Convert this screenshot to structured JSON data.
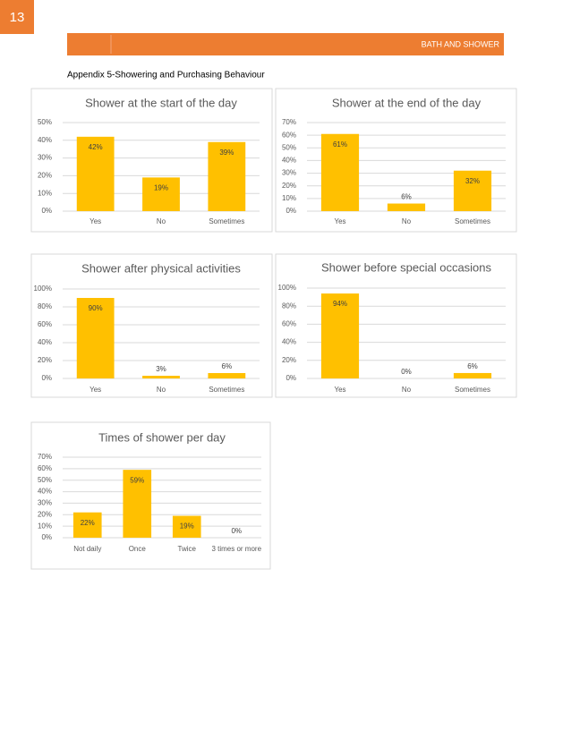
{
  "page_number": "13",
  "header": {
    "title": "BATH AND SHOWER"
  },
  "heading": "Appendix 5-Showering and Purchasing Behaviour",
  "chart_data": [
    {
      "type": "bar",
      "title": "Shower at the start of the day",
      "categories": [
        "Yes",
        "No",
        "Sometimes"
      ],
      "values": [
        42,
        19,
        39
      ],
      "value_labels": [
        "42%",
        "19%",
        "39%"
      ],
      "color": "#FFC000",
      "ylim": [
        0,
        50
      ],
      "yticks": [
        {
          "value": 0,
          "label": "0%"
        },
        {
          "value": 10,
          "label": "10%"
        },
        {
          "value": 20,
          "label": "20%"
        },
        {
          "value": 30,
          "label": "30%"
        },
        {
          "value": 40,
          "label": "40%"
        },
        {
          "value": 50,
          "label": "50%"
        }
      ],
      "grid": true
    },
    {
      "type": "bar",
      "title": "Shower at the end of the day",
      "categories": [
        "Yes",
        "No",
        "Sometimes"
      ],
      "values": [
        61,
        6,
        32
      ],
      "value_labels": [
        "61%",
        "6%",
        "32%"
      ],
      "color": "#FFC000",
      "ylim": [
        0,
        70
      ],
      "yticks": [
        {
          "value": 0,
          "label": "0%"
        },
        {
          "value": 10,
          "label": "10%"
        },
        {
          "value": 20,
          "label": "20%"
        },
        {
          "value": 30,
          "label": "30%"
        },
        {
          "value": 40,
          "label": "40%"
        },
        {
          "value": 50,
          "label": "50%"
        },
        {
          "value": 60,
          "label": "60%"
        },
        {
          "value": 70,
          "label": "70%"
        }
      ],
      "grid": true
    },
    {
      "type": "bar",
      "title": "Shower after physical activities",
      "categories": [
        "Yes",
        "No",
        "Sometimes"
      ],
      "values": [
        90,
        3,
        6
      ],
      "value_labels": [
        "90%",
        "3%",
        "6%"
      ],
      "color": "#FFC000",
      "ylim": [
        0,
        100
      ],
      "yticks": [
        {
          "value": 0,
          "label": "0%"
        },
        {
          "value": 20,
          "label": "20%"
        },
        {
          "value": 40,
          "label": "40%"
        },
        {
          "value": 60,
          "label": "60%"
        },
        {
          "value": 80,
          "label": "80%"
        },
        {
          "value": 100,
          "label": "100%"
        }
      ],
      "grid": true
    },
    {
      "type": "bar",
      "title": "Shower before special occasions",
      "categories": [
        "Yes",
        "No",
        "Sometimes"
      ],
      "values": [
        94,
        0,
        6
      ],
      "value_labels": [
        "94%",
        "0%",
        "6%"
      ],
      "color": "#FFC000",
      "ylim": [
        0,
        100
      ],
      "yticks": [
        {
          "value": 0,
          "label": "0%"
        },
        {
          "value": 20,
          "label": "20%"
        },
        {
          "value": 40,
          "label": "40%"
        },
        {
          "value": 60,
          "label": "60%"
        },
        {
          "value": 80,
          "label": "80%"
        },
        {
          "value": 100,
          "label": "100%"
        }
      ],
      "grid": true
    },
    {
      "type": "bar",
      "title": "Times of shower per day",
      "categories": [
        "Not daily",
        "Once",
        "Twice",
        "3 times or more"
      ],
      "values": [
        22,
        59,
        19,
        0
      ],
      "value_labels": [
        "22%",
        "59%",
        "19%",
        "0%"
      ],
      "color": "#FFC000",
      "ylim": [
        0,
        70
      ],
      "yticks": [
        {
          "value": 0,
          "label": "0%"
        },
        {
          "value": 10,
          "label": "10%"
        },
        {
          "value": 20,
          "label": "20%"
        },
        {
          "value": 30,
          "label": "30%"
        },
        {
          "value": 40,
          "label": "40%"
        },
        {
          "value": 50,
          "label": "50%"
        },
        {
          "value": 60,
          "label": "60%"
        },
        {
          "value": 70,
          "label": "70%"
        }
      ],
      "grid": true
    }
  ]
}
